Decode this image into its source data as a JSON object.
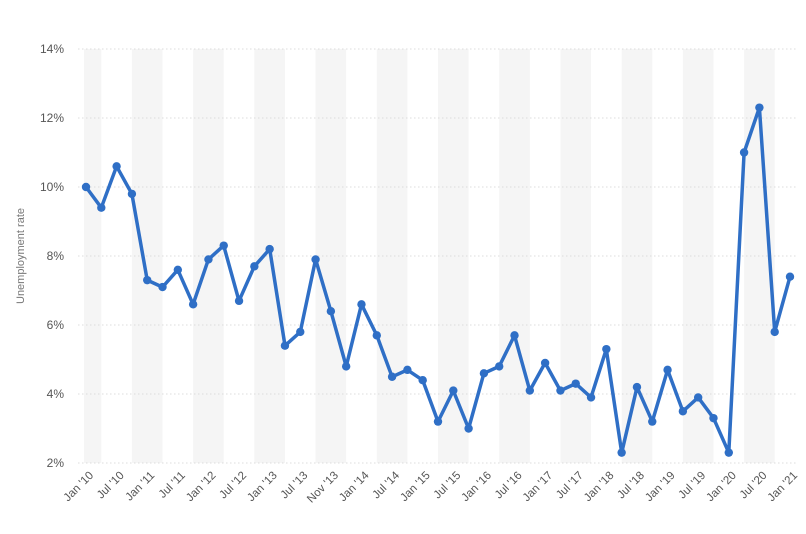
{
  "chart_data": {
    "type": "line",
    "title": "",
    "xlabel": "",
    "ylabel": "Unemployment rate",
    "ylim": [
      2,
      14
    ],
    "y_ticks": [
      2,
      4,
      6,
      8,
      10,
      12,
      14
    ],
    "y_tick_labels": [
      "2%",
      "4%",
      "6%",
      "8%",
      "10%",
      "12%",
      "14%"
    ],
    "grid": true,
    "legend": "none",
    "x_tick_labels": [
      "Jan '10",
      "Jul '10",
      "Jan '11",
      "Jul '11",
      "Jan '12",
      "Jul '12",
      "Jan '13",
      "Jul '13",
      "Nov '13",
      "Jan '14",
      "Jul '14",
      "Jan '15",
      "Jul '15",
      "Jan '16",
      "Jul '16",
      "Jan '17",
      "Jul '17",
      "Jan '18",
      "Jul '18",
      "Jan '19",
      "Jul '19",
      "Jan '20",
      "Jul '20",
      "Jan '21"
    ],
    "colors": {
      "line": "#2f6fc6",
      "band": "#f5f5f5",
      "grid": "#dcdcdc"
    },
    "series": [
      {
        "values": [
          10.0,
          9.4,
          10.6,
          9.8,
          7.3,
          7.1,
          7.6,
          6.6,
          7.9,
          8.3,
          6.7,
          7.7,
          8.2,
          5.4,
          5.8,
          7.9,
          6.4,
          4.8,
          6.6,
          5.7,
          4.5,
          4.7,
          4.4,
          3.2,
          4.1,
          3.0,
          4.6,
          4.8,
          5.7,
          4.1,
          4.9,
          4.1,
          4.3,
          3.9,
          5.3,
          2.3,
          4.2,
          3.2,
          4.7,
          3.5,
          3.9,
          3.3,
          2.3,
          11.0,
          12.3,
          5.8,
          7.4
        ]
      }
    ]
  }
}
